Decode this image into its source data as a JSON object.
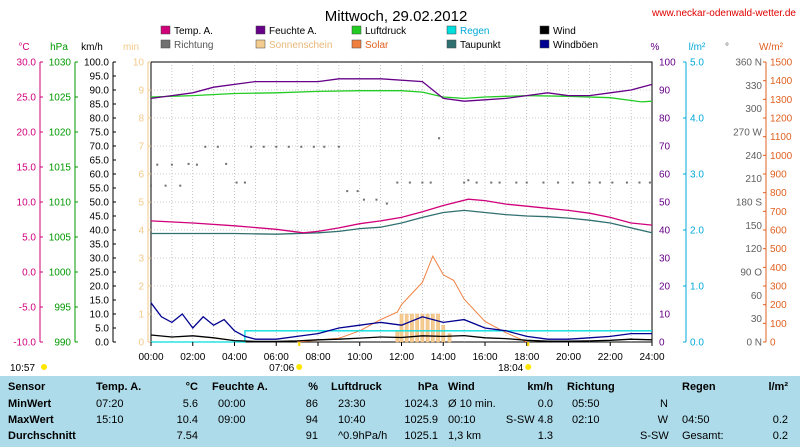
{
  "title": "Mittwoch, 29.02.2012",
  "site": "www.neckar-odenwald-wetter.de",
  "colors": {
    "temp": "#d0007a",
    "feuchte": "#660088",
    "luftdruck": "#22cc22",
    "regen": "#00dddd",
    "wind": "#000000",
    "richtung": "#707070",
    "sonnenschein": "#f5cc90",
    "solar": "#f08040",
    "taupunkt": "#307070",
    "windboeen": "#000090",
    "stats_bg": "#aedbe9"
  },
  "legend": [
    {
      "label": "Temp. A.",
      "color": "#d0007a",
      "text_color": "#000000"
    },
    {
      "label": "Feuchte A.",
      "color": "#660088",
      "text_color": "#000000"
    },
    {
      "label": "Luftdruck",
      "color": "#22cc22",
      "text_color": "#000000"
    },
    {
      "label": "Regen",
      "color": "#00dddd",
      "text_color": "#00a8d8"
    },
    {
      "label": "Wind",
      "color": "#000000",
      "text_color": "#000000"
    },
    {
      "label": "Richtung",
      "color": "#707070",
      "text_color": "#555555"
    },
    {
      "label": "Sonnenschein",
      "color": "#f5cc90",
      "text_color": "#e8b878"
    },
    {
      "label": "Solar",
      "color": "#f08040",
      "text_color": "#e06020"
    },
    {
      "label": "Taupunkt",
      "color": "#307070",
      "text_color": "#000000"
    },
    {
      "label": "Windböen",
      "color": "#000090",
      "text_color": "#000000"
    }
  ],
  "axes": {
    "temp": {
      "unit": "°C",
      "color": "#d0007a",
      "ticks": [
        "30.0",
        "25.0",
        "20.0",
        "15.0",
        "10.0",
        "5.0",
        "0.0",
        "-5.0",
        "-10.0"
      ]
    },
    "press": {
      "unit": "hPa",
      "color": "#009900",
      "ticks": [
        "1030",
        "1025",
        "1020",
        "1015",
        "1010",
        "1005",
        "1000",
        "995",
        "990"
      ]
    },
    "wind": {
      "unit": "km/h",
      "color": "#000000",
      "ticks": [
        "100.0",
        "95.0",
        "90.0",
        "85.0",
        "80.0",
        "75.0",
        "70.0",
        "65.0",
        "60.0",
        "55.0",
        "50.0",
        "45.0",
        "40.0",
        "35.0",
        "30.0",
        "25.0",
        "20.0",
        "15.0",
        "10.0",
        "5.0",
        "0.0"
      ]
    },
    "sun": {
      "unit": "min",
      "color": "#f2c98a",
      "ticks": [
        "10",
        "9",
        "8",
        "7",
        "6",
        "5",
        "4",
        "3",
        "2",
        "1",
        "0"
      ]
    },
    "hum": {
      "unit": "%",
      "color": "#660088",
      "ticks": [
        "100",
        "90",
        "80",
        "70",
        "60",
        "50",
        "40",
        "30",
        "20",
        "10",
        "0"
      ]
    },
    "rain": {
      "unit": "l/m²",
      "color": "#00a8d8",
      "ticks": [
        "5.0",
        "4.0",
        "3.0",
        "2.0",
        "1.0",
        "0.0"
      ]
    },
    "dir": {
      "unit": "°",
      "color": "#606060",
      "ticks": [
        "360 N",
        "330",
        "300",
        "270 W",
        "240",
        "210",
        "180 S",
        "150",
        "120",
        "90 O",
        "60",
        "30",
        "0 N"
      ]
    },
    "solar": {
      "unit": "W/m²",
      "color": "#e06020",
      "ticks": [
        "1500",
        "1400",
        "1300",
        "1200",
        "1100",
        "1000",
        "900",
        "800",
        "700",
        "600",
        "500",
        "400",
        "300",
        "200",
        "100",
        "0"
      ]
    }
  },
  "x_ticks": [
    "00:00",
    "02:00",
    "04:00",
    "06:00",
    "08:00",
    "10:00",
    "12:00",
    "14:00",
    "16:00",
    "18:00",
    "20:00",
    "22:00",
    "24:00"
  ],
  "sun_markers": [
    {
      "label": "10:57",
      "time": 0
    },
    {
      "label": "07:06",
      "time": 7.1
    },
    {
      "label": "18:04",
      "time": 18.07
    }
  ],
  "chart_data": {
    "type": "line",
    "title": "Mittwoch, 29.02.2012",
    "x_unit": "hour of day",
    "xlim": [
      0,
      24
    ],
    "series": [
      {
        "name": "Temp. A.",
        "axis": "temp",
        "ylim": [
          -10,
          30
        ],
        "points": [
          [
            0,
            7.3
          ],
          [
            2,
            7.0
          ],
          [
            4,
            6.6
          ],
          [
            6,
            6.1
          ],
          [
            7.3,
            5.6
          ],
          [
            8,
            5.8
          ],
          [
            9,
            6.3
          ],
          [
            10,
            6.9
          ],
          [
            11,
            7.3
          ],
          [
            12,
            7.8
          ],
          [
            13,
            8.6
          ],
          [
            14,
            9.5
          ],
          [
            15.2,
            10.4
          ],
          [
            16,
            10.2
          ],
          [
            17,
            9.7
          ],
          [
            18,
            9.4
          ],
          [
            19,
            9.1
          ],
          [
            20,
            8.8
          ],
          [
            21,
            8.4
          ],
          [
            22,
            7.8
          ],
          [
            23,
            7.0
          ],
          [
            24,
            6.7
          ]
        ]
      },
      {
        "name": "Taupunkt",
        "axis": "temp",
        "ylim": [
          -10,
          30
        ],
        "points": [
          [
            0,
            5.5
          ],
          [
            2,
            5.5
          ],
          [
            4,
            5.5
          ],
          [
            6,
            5.4
          ],
          [
            8,
            5.6
          ],
          [
            9,
            5.8
          ],
          [
            10,
            6.2
          ],
          [
            11,
            6.4
          ],
          [
            12,
            7.0
          ],
          [
            13,
            7.8
          ],
          [
            14,
            8.5
          ],
          [
            15,
            8.8
          ],
          [
            16,
            8.5
          ],
          [
            17,
            8.2
          ],
          [
            18,
            8.0
          ],
          [
            19,
            7.9
          ],
          [
            20,
            7.7
          ],
          [
            21,
            7.4
          ],
          [
            22,
            7.0
          ],
          [
            23,
            6.3
          ],
          [
            24,
            5.6
          ]
        ]
      },
      {
        "name": "Feuchte A.",
        "axis": "hum",
        "ylim": [
          0,
          100
        ],
        "points": [
          [
            0,
            87
          ],
          [
            1,
            88
          ],
          [
            2,
            89
          ],
          [
            3,
            91
          ],
          [
            5,
            93
          ],
          [
            8,
            93
          ],
          [
            9,
            94
          ],
          [
            11,
            94
          ],
          [
            13,
            93
          ],
          [
            13.5,
            90
          ],
          [
            14,
            87
          ],
          [
            15,
            86
          ],
          [
            16,
            86.5
          ],
          [
            17,
            87
          ],
          [
            18,
            88
          ],
          [
            19,
            89
          ],
          [
            20,
            88
          ],
          [
            21,
            88
          ],
          [
            22,
            89
          ],
          [
            23,
            90
          ],
          [
            24,
            92
          ]
        ]
      },
      {
        "name": "Luftdruck",
        "axis": "press",
        "ylim": [
          990,
          1030
        ],
        "points": [
          [
            0,
            1025.0
          ],
          [
            2,
            1025.2
          ],
          [
            4,
            1025.5
          ],
          [
            6,
            1025.6
          ],
          [
            8,
            1025.8
          ],
          [
            10,
            1025.9
          ],
          [
            12,
            1025.9
          ],
          [
            13,
            1025.7
          ],
          [
            14,
            1025.0
          ],
          [
            15,
            1024.8
          ],
          [
            16,
            1025.0
          ],
          [
            18,
            1025.2
          ],
          [
            20,
            1025.1
          ],
          [
            22,
            1024.9
          ],
          [
            23.5,
            1024.3
          ],
          [
            24,
            1024.4
          ]
        ]
      },
      {
        "name": "Regen",
        "axis": "rain",
        "ylim": [
          0,
          5
        ],
        "points": [
          [
            0,
            0
          ],
          [
            4.5,
            0
          ],
          [
            4.5,
            0.2
          ],
          [
            24,
            0.2
          ]
        ]
      },
      {
        "name": "Wind",
        "axis": "wind",
        "ylim": [
          0,
          100
        ],
        "points": [
          [
            0,
            2.5
          ],
          [
            1,
            1.8
          ],
          [
            2,
            2.2
          ],
          [
            3,
            1.5
          ],
          [
            4,
            0.5
          ],
          [
            5,
            0.2
          ],
          [
            6,
            0.2
          ],
          [
            7,
            0.4
          ],
          [
            8,
            0.8
          ],
          [
            9,
            1.0
          ],
          [
            10,
            1.4
          ],
          [
            11,
            1.8
          ],
          [
            12,
            1.6
          ],
          [
            13,
            2.2
          ],
          [
            14,
            2.0
          ],
          [
            15,
            2.3
          ],
          [
            16,
            1.5
          ],
          [
            17,
            1.2
          ],
          [
            18,
            0.6
          ],
          [
            19,
            0.3
          ],
          [
            20,
            0.3
          ],
          [
            21,
            0.4
          ],
          [
            22,
            0.6
          ],
          [
            23,
            1.0
          ],
          [
            24,
            0.8
          ]
        ]
      },
      {
        "name": "Windböen",
        "axis": "wind",
        "ylim": [
          0,
          100
        ],
        "points": [
          [
            0,
            14
          ],
          [
            0.5,
            9
          ],
          [
            1,
            7
          ],
          [
            1.5,
            10
          ],
          [
            2,
            5
          ],
          [
            2.5,
            9
          ],
          [
            3,
            6
          ],
          [
            3.5,
            8
          ],
          [
            4,
            4
          ],
          [
            4.5,
            2
          ],
          [
            5,
            1
          ],
          [
            6,
            1
          ],
          [
            7,
            2
          ],
          [
            8,
            3
          ],
          [
            9,
            5
          ],
          [
            10,
            6
          ],
          [
            11,
            7
          ],
          [
            12,
            6
          ],
          [
            13,
            9
          ],
          [
            14,
            7
          ],
          [
            15,
            8
          ],
          [
            16,
            5
          ],
          [
            17,
            4
          ],
          [
            18,
            2
          ],
          [
            19,
            1
          ],
          [
            20,
            1
          ],
          [
            21,
            1.5
          ],
          [
            22,
            2
          ],
          [
            23,
            3
          ],
          [
            24,
            3
          ]
        ]
      },
      {
        "name": "Solar",
        "axis": "solar",
        "ylim": [
          0,
          1500
        ],
        "points": [
          [
            7,
            0
          ],
          [
            9,
            20
          ],
          [
            10,
            60
          ],
          [
            11,
            120
          ],
          [
            11.8,
            160
          ],
          [
            12,
            200
          ],
          [
            12.5,
            260
          ],
          [
            13,
            320
          ],
          [
            13.5,
            460
          ],
          [
            13.8,
            400
          ],
          [
            14,
            360
          ],
          [
            14.5,
            330
          ],
          [
            15,
            230
          ],
          [
            15.5,
            170
          ],
          [
            16,
            110
          ],
          [
            17,
            50
          ],
          [
            18,
            0
          ]
        ]
      },
      {
        "name": "Sonnenschein",
        "axis": "sun",
        "ylim": [
          0,
          10
        ],
        "points": [
          [
            11.8,
            0.4
          ],
          [
            12,
            1
          ],
          [
            12.25,
            1
          ],
          [
            12.5,
            1
          ],
          [
            12.75,
            1
          ],
          [
            13,
            1
          ],
          [
            13.25,
            1
          ],
          [
            13.5,
            1
          ],
          [
            13.75,
            1
          ],
          [
            14,
            0.6
          ],
          [
            14.3,
            0.3
          ]
        ]
      },
      {
        "name": "Richtung",
        "axis": "dir",
        "ylim": [
          0,
          360
        ],
        "points": [
          [
            0,
            201
          ],
          [
            0.7,
            201
          ],
          [
            1.4,
            201
          ],
          [
            0.3,
            228
          ],
          [
            1.0,
            228
          ],
          [
            1.8,
            229
          ],
          [
            2.2,
            228
          ],
          [
            2.6,
            251
          ],
          [
            3.2,
            251
          ],
          [
            3.6,
            229
          ],
          [
            4.1,
            205
          ],
          [
            4.5,
            205
          ],
          [
            4.8,
            251
          ],
          [
            5.4,
            251
          ],
          [
            6.0,
            251
          ],
          [
            6.6,
            251
          ],
          [
            7.2,
            251
          ],
          [
            7.8,
            251
          ],
          [
            8.3,
            251
          ],
          [
            9.0,
            251
          ],
          [
            9.4,
            194
          ],
          [
            9.9,
            194
          ],
          [
            10.2,
            183
          ],
          [
            10.8,
            183
          ],
          [
            11.3,
            178
          ],
          [
            11.8,
            205
          ],
          [
            12.4,
            205
          ],
          [
            13.0,
            205
          ],
          [
            13.4,
            205
          ],
          [
            13.8,
            262
          ],
          [
            15.0,
            205
          ],
          [
            15.6,
            205
          ],
          [
            16.3,
            205
          ],
          [
            16.7,
            205
          ],
          [
            15.2,
            208
          ],
          [
            17.5,
            205
          ],
          [
            18.0,
            205
          ],
          [
            18.8,
            205
          ],
          [
            19.5,
            205
          ],
          [
            20.2,
            205
          ],
          [
            21.0,
            205
          ],
          [
            21.5,
            205
          ],
          [
            22.1,
            205
          ],
          [
            22.8,
            205
          ],
          [
            23.4,
            205
          ],
          [
            23.9,
            205
          ]
        ]
      }
    ]
  },
  "stats": {
    "headers": {
      "sensor": "Sensor",
      "temp": "Temp. A.",
      "temp_unit": "°C",
      "feuchte": "Feuchte A.",
      "feuchte_unit": "%",
      "druck": "Luftdruck",
      "druck_unit": "hPa",
      "wind": "Wind",
      "wind_unit": "km/h",
      "richtung": "Richtung",
      "regen": "Regen",
      "regen_unit": "l/m²"
    },
    "rows": [
      {
        "label": "MinWert",
        "temp_time": "07:20",
        "temp_val": "5.6",
        "feuchte_time": "00:00",
        "feuchte_val": "86",
        "druck_time": "23:30",
        "druck_val": "1024.3",
        "wind_time": "Ø 10 min.",
        "wind_val": "0.0",
        "richtung_time": "05:50",
        "richtung_val": "N",
        "regen_time": "",
        "regen_val": ""
      },
      {
        "label": "MaxWert",
        "temp_time": "15:10",
        "temp_val": "10.4",
        "feuchte_time": "09:00",
        "feuchte_val": "94",
        "druck_time": "10:40",
        "druck_val": "1025.9",
        "wind_time": "00:10",
        "wind_val": "S-SW 4.8",
        "richtung_time": "02:10",
        "richtung_val": "W",
        "regen_time": "04:50",
        "regen_val": "0.2"
      },
      {
        "label": "Durchschnitt",
        "temp_time": "",
        "temp_val": "7.54",
        "feuchte_time": "",
        "feuchte_val": "91",
        "druck_time": "^0.9hPa/h",
        "druck_val": "1025.1",
        "wind_time": "1,3 km",
        "wind_val": "1.3",
        "richtung_time": "",
        "richtung_val": "S-SW",
        "regen_time": "Gesamt:",
        "regen_val": "0.2"
      }
    ]
  }
}
